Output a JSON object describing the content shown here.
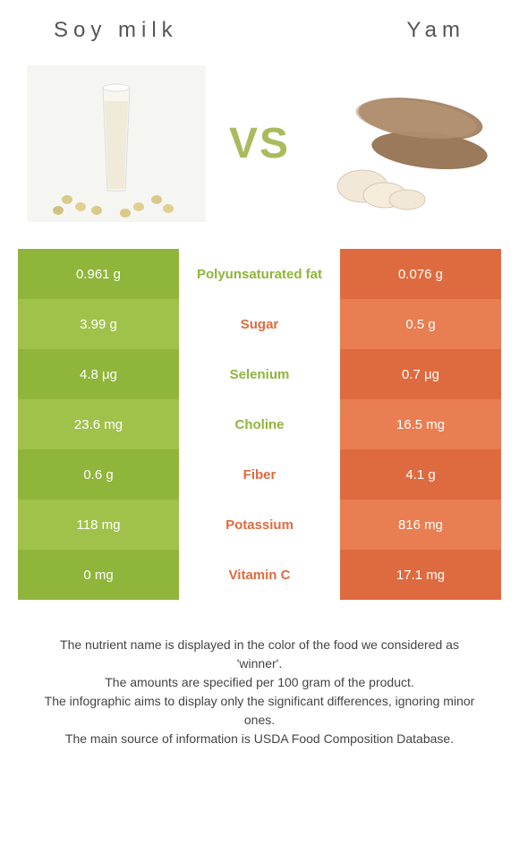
{
  "left_food": {
    "title": "Soy milk",
    "color": "#8fb53a",
    "alt_color": "#a0c24a"
  },
  "right_food": {
    "title": "Yam",
    "color": "#de6b3f",
    "alt_color": "#e87e52"
  },
  "vs_label": "VS",
  "vs_color": "#a8bc5e",
  "mid_bg": "#ffffff",
  "nutrients": [
    {
      "name": "Polyunsaturated fat",
      "left": "0.961 g",
      "right": "0.076 g",
      "winner": "left"
    },
    {
      "name": "Sugar",
      "left": "3.99 g",
      "right": "0.5 g",
      "winner": "right"
    },
    {
      "name": "Selenium",
      "left": "4.8 μg",
      "right": "0.7 μg",
      "winner": "left"
    },
    {
      "name": "Choline",
      "left": "23.6 mg",
      "right": "16.5 mg",
      "winner": "left"
    },
    {
      "name": "Fiber",
      "left": "0.6 g",
      "right": "4.1 g",
      "winner": "right"
    },
    {
      "name": "Potassium",
      "left": "118 mg",
      "right": "816 mg",
      "winner": "right"
    },
    {
      "name": "Vitamin C",
      "left": "0 mg",
      "right": "17.1 mg",
      "winner": "right"
    }
  ],
  "footnotes": [
    "The nutrient name is displayed in the color of the food we considered as 'winner'.",
    "The amounts are specified per 100 gram of the product.",
    "The infographic aims to display only the significant differences, ignoring minor ones.",
    "The main source of information is USDA Food Composition Database."
  ]
}
